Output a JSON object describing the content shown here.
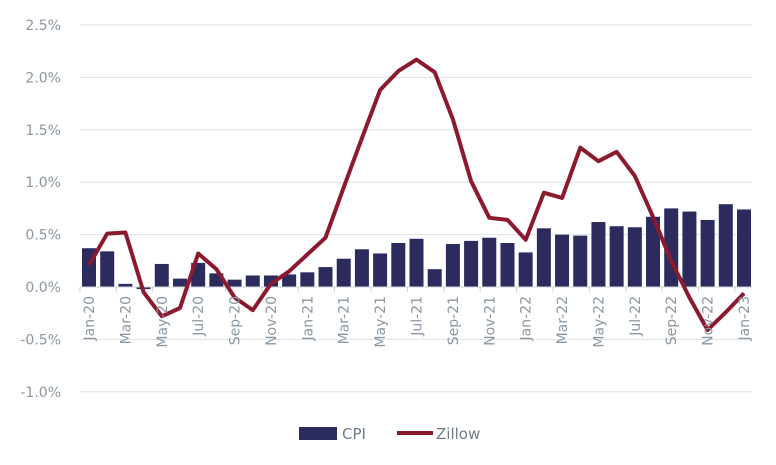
{
  "chart_data": {
    "type": "bar+line",
    "title": "",
    "xlabel": "",
    "ylabel": "",
    "ylim": [
      -1.0,
      2.5
    ],
    "y_ticks": [
      "2.5%",
      "2.0%",
      "1.5%",
      "1.0%",
      "0.5%",
      "0.0%",
      "-0.5%",
      "-1.0%"
    ],
    "y_tick_values": [
      2.5,
      2.0,
      1.5,
      1.0,
      0.5,
      0.0,
      -0.5,
      -1.0
    ],
    "grid": "horizontal",
    "legend_position": "bottom",
    "categories": [
      "Jan-20",
      "Feb-20",
      "Mar-20",
      "Apr-20",
      "May-20",
      "Jun-20",
      "Jul-20",
      "Aug-20",
      "Sep-20",
      "Oct-20",
      "Nov-20",
      "Dec-20",
      "Jan-21",
      "Feb-21",
      "Mar-21",
      "Apr-21",
      "May-21",
      "Jun-21",
      "Jul-21",
      "Aug-21",
      "Sep-21",
      "Oct-21",
      "Nov-21",
      "Dec-21",
      "Jan-22",
      "Feb-22",
      "Mar-22",
      "Apr-22",
      "May-22",
      "Jun-22",
      "Jul-22",
      "Aug-22",
      "Sep-22",
      "Oct-22",
      "Nov-22",
      "Dec-22",
      "Jan-23"
    ],
    "series": [
      {
        "name": "CPI",
        "type": "bar",
        "color": "#2b2b5e",
        "values": [
          0.37,
          0.34,
          0.03,
          -0.02,
          0.22,
          0.08,
          0.23,
          0.13,
          0.07,
          0.11,
          0.11,
          0.12,
          0.14,
          0.19,
          0.27,
          0.36,
          0.32,
          0.42,
          0.46,
          0.17,
          0.41,
          0.44,
          0.47,
          0.42,
          0.33,
          0.56,
          0.5,
          0.49,
          0.62,
          0.58,
          0.57,
          0.67,
          0.75,
          0.72,
          0.64,
          0.79,
          0.74
        ]
      },
      {
        "name": "Zillow",
        "type": "line",
        "color": "#8b1a2f",
        "values": [
          0.21,
          0.51,
          0.52,
          -0.05,
          -0.28,
          -0.2,
          0.32,
          0.17,
          -0.1,
          -0.22,
          0.03,
          0.15,
          0.31,
          0.47,
          0.95,
          1.42,
          1.88,
          2.06,
          2.17,
          2.05,
          1.6,
          1.01,
          0.66,
          0.64,
          0.45,
          0.9,
          0.85,
          1.33,
          1.2,
          1.29,
          1.06,
          0.67,
          0.25,
          -0.1,
          -0.41,
          -0.24,
          -0.06
        ]
      }
    ]
  }
}
